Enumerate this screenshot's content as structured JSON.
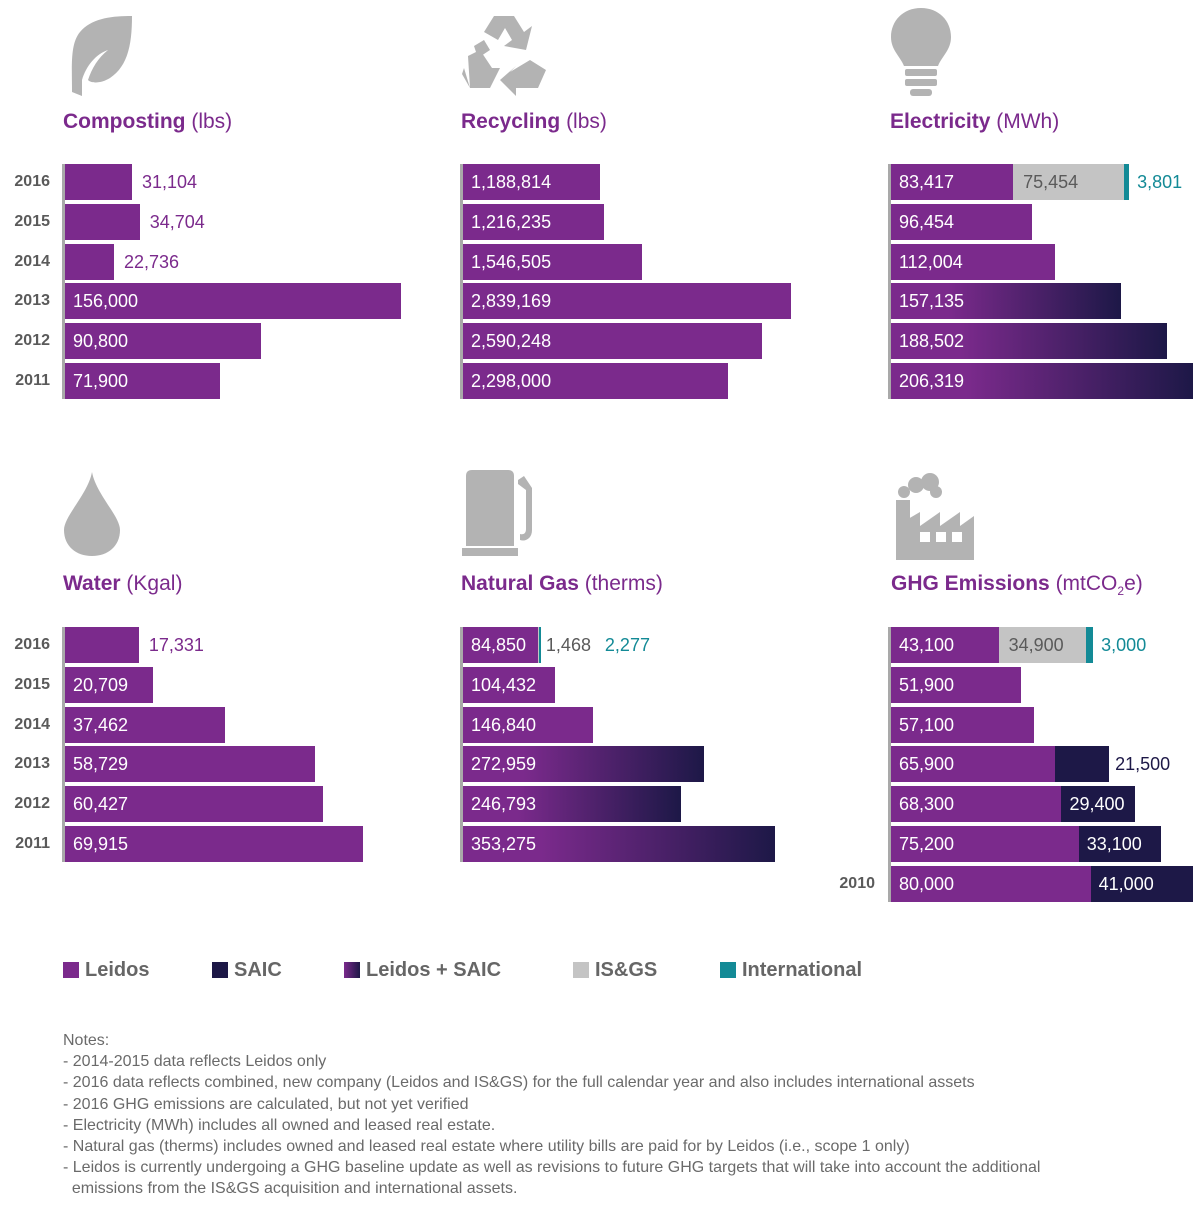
{
  "colors": {
    "leidos": "#7b2a8c",
    "saic": "#1d1847",
    "isgs": "#c4c4c4",
    "international": "#138a96",
    "text_gray": "#5a5a5a"
  },
  "chart_data": [
    {
      "type": "bar",
      "id": "composting",
      "title": "Composting",
      "unit": "(lbs)",
      "icon": "leaf-icon",
      "categories": [
        "2016",
        "2015",
        "2014",
        "2013",
        "2012",
        "2011"
      ],
      "series": [
        {
          "name": "Leidos",
          "values": [
            31104,
            34704,
            22736,
            156000,
            90800,
            71900
          ]
        }
      ],
      "labels": [
        "31,104",
        "34,704",
        "22,736",
        "156,000",
        "90,800",
        "71,900"
      ],
      "scale_max": 156000
    },
    {
      "type": "bar",
      "id": "recycling",
      "title": "Recycling",
      "unit": "(lbs)",
      "icon": "recycle-icon",
      "categories": [
        "2016",
        "2015",
        "2014",
        "2013",
        "2012",
        "2011"
      ],
      "series": [
        {
          "name": "Leidos",
          "values": [
            1188814,
            1216235,
            1546505,
            2839169,
            2590248,
            2298000
          ]
        }
      ],
      "labels": [
        "1,188,814",
        "1,216,235",
        "1,546,505",
        "2,839,169",
        "2,590,248",
        "2,298,000"
      ],
      "scale_max": 2839169
    },
    {
      "type": "bar",
      "id": "electricity",
      "title": "Electricity",
      "unit": "(MWh)",
      "icon": "lightbulb-icon",
      "categories": [
        "2016",
        "2015",
        "2014",
        "2013",
        "2012",
        "2011"
      ],
      "series": [
        {
          "name": "Leidos",
          "values": [
            83417,
            96454,
            112004,
            null,
            null,
            null
          ]
        },
        {
          "name": "Leidos + SAIC",
          "values": [
            null,
            null,
            null,
            157135,
            188502,
            206319
          ]
        },
        {
          "name": "IS&GS",
          "values": [
            75454,
            null,
            null,
            null,
            null,
            null
          ]
        },
        {
          "name": "International",
          "values": [
            3801,
            null,
            null,
            null,
            null,
            null
          ]
        }
      ],
      "labels": [
        "83,417",
        "96,454",
        "112,004",
        "157,135",
        "188,502",
        "206,319"
      ],
      "extra_labels": {
        "isgs_2016": "75,454",
        "intl_2016": "3,801"
      },
      "scale_max": 206319
    },
    {
      "type": "bar",
      "id": "water",
      "title": "Water",
      "unit": "(Kgal)",
      "icon": "water-drop-icon",
      "categories": [
        "2016",
        "2015",
        "2014",
        "2013",
        "2012",
        "2011"
      ],
      "series": [
        {
          "name": "Leidos",
          "values": [
            17331,
            20709,
            37462,
            58729,
            60427,
            69915
          ]
        }
      ],
      "labels": [
        "17,331",
        "20,709",
        "37,462",
        "58,729",
        "60,427",
        "69,915"
      ],
      "scale_max": 69915
    },
    {
      "type": "bar",
      "id": "natural_gas",
      "title": "Natural Gas",
      "unit": "(therms)",
      "icon": "gas-pump-icon",
      "categories": [
        "2016",
        "2015",
        "2014",
        "2013",
        "2012",
        "2011"
      ],
      "series": [
        {
          "name": "Leidos",
          "values": [
            84850,
            104432,
            146840,
            null,
            null,
            null
          ]
        },
        {
          "name": "Leidos + SAIC",
          "values": [
            null,
            null,
            null,
            272959,
            246793,
            353275
          ]
        },
        {
          "name": "IS&GS",
          "values": [
            1468,
            null,
            null,
            null,
            null,
            null
          ]
        },
        {
          "name": "International",
          "values": [
            2277,
            null,
            null,
            null,
            null,
            null
          ]
        }
      ],
      "labels": [
        "84,850",
        "104,432",
        "146,840",
        "272,959",
        "246,793",
        "353,275"
      ],
      "extra_labels": {
        "isgs_2016": "1,468",
        "intl_2016": "2,277"
      },
      "scale_max": 353275
    },
    {
      "type": "bar",
      "id": "ghg",
      "title": "GHG Emissions",
      "unit_pre": "(mtCO",
      "unit_sub": "2",
      "unit_post": "e)",
      "icon": "factory-icon",
      "categories": [
        "2016",
        "2015",
        "2014",
        "2013",
        "2012",
        "2011",
        "2010"
      ],
      "series": [
        {
          "name": "Leidos",
          "values": [
            43100,
            51900,
            57100,
            65900,
            68300,
            75200,
            80000
          ]
        },
        {
          "name": "SAIC",
          "values": [
            null,
            null,
            null,
            21500,
            29400,
            33100,
            41000
          ]
        },
        {
          "name": "IS&GS",
          "values": [
            34900,
            null,
            null,
            null,
            null,
            null,
            null
          ]
        },
        {
          "name": "International",
          "values": [
            3000,
            null,
            null,
            null,
            null,
            null,
            null
          ]
        }
      ],
      "labels": [
        "43,100",
        "51,900",
        "57,100",
        "65,900",
        "68,300",
        "75,200",
        "80,000"
      ],
      "saic_labels": [
        "",
        "",
        "",
        "21,500",
        "29,400",
        "33,100",
        "41,000"
      ],
      "extra_labels": {
        "isgs_2016": "34,900",
        "intl_2016": "3,000"
      },
      "year_labels": [
        "2016",
        "2015",
        "2014",
        "2013",
        "2012",
        "2011",
        "2010"
      ],
      "scale_max": 121000
    }
  ],
  "legend": [
    {
      "label": "Leidos",
      "key": "leidos"
    },
    {
      "label": "SAIC",
      "key": "saic"
    },
    {
      "label": "Leidos + SAIC",
      "key": "combo"
    },
    {
      "label": "IS&GS",
      "key": "isgs"
    },
    {
      "label": "International",
      "key": "international"
    }
  ],
  "notes": {
    "heading": "Notes:",
    "items": [
      "- 2014-2015 data reflects Leidos only",
      "- 2016 data reflects combined, new company (Leidos and IS&GS) for the full calendar year and also includes international assets",
      "- 2016 GHG emissions are calculated, but not yet verified",
      "- Electricity (MWh) includes all owned and leased real estate.",
      "- Natural gas (therms) includes owned and leased real estate where utility bills are paid for by Leidos (i.e., scope 1 only)",
      "- Leidos is currently undergoing a GHG baseline update as well as revisions to future GHG targets that will take into account the additional",
      "  emissions from the IS&GS acquisition and international assets."
    ]
  }
}
